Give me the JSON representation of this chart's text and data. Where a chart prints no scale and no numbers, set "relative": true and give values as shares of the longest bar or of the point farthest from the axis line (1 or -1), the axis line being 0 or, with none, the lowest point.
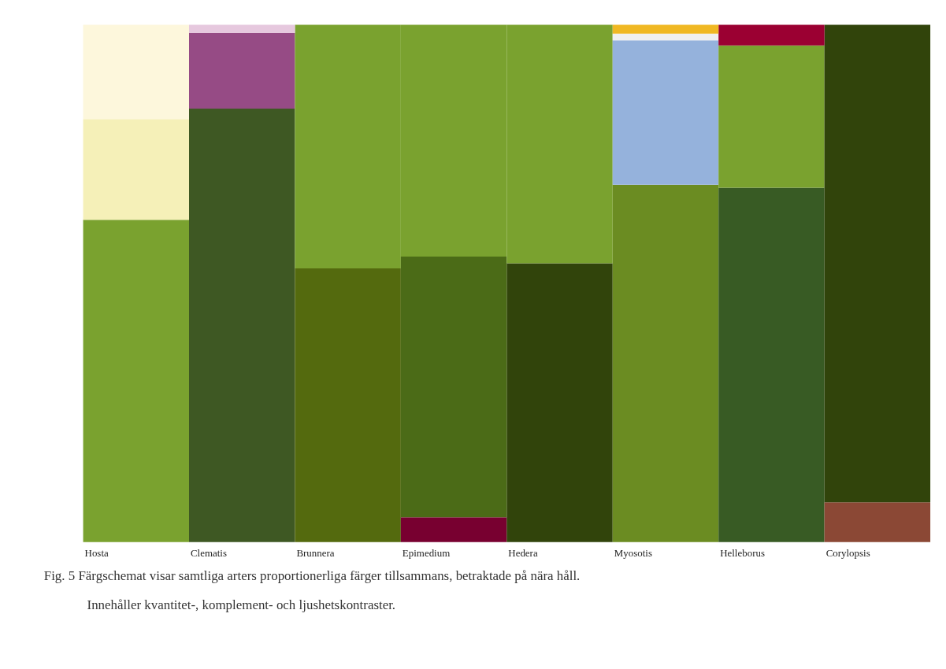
{
  "chart_data": {
    "type": "bar",
    "stacked": true,
    "relative": true,
    "grid": false,
    "categories": [
      "Hosta",
      "Clematis",
      "Brunnera",
      "Epimedium",
      "Hedera",
      "Myosotis",
      "Helleborus",
      "Corylopsis"
    ],
    "series": [
      {
        "colors": [
          "#7aa22f",
          "#3e5823",
          "#546a0e",
          "#780030",
          "#31440b",
          "#6b8c22",
          "#385b24",
          "#8b4835"
        ],
        "values": [
          0.623,
          0.838,
          0.529,
          0.048,
          0.539,
          0.691,
          0.685,
          0.077
        ]
      },
      {
        "colors": [
          "#f5f0b8",
          "#964b85",
          "#7aa22f",
          "#4b6b17",
          "#7aa22f",
          "#95b2dc",
          "#7aa22f",
          "#31440b"
        ],
        "values": [
          0.195,
          0.146,
          0.471,
          0.504,
          0.461,
          0.279,
          0.275,
          0.923
        ]
      },
      {
        "colors": [
          "#fdf7dc",
          "#e6c8de",
          null,
          "#7aa22f",
          null,
          "#f0f0f0",
          "#9b0032",
          null
        ],
        "values": [
          0.182,
          0.016,
          null,
          0.448,
          null,
          0.013,
          0.04,
          null
        ]
      },
      {
        "colors": [
          null,
          null,
          null,
          null,
          null,
          "#f0b823",
          null,
          null
        ],
        "values": [
          null,
          null,
          null,
          null,
          null,
          0.017,
          null,
          null
        ]
      }
    ],
    "annotations": [
      "Fig. 5 Färgschemat visar samtliga arters proportionerliga färger tillsammans, betraktade på nära håll.",
      "Innehåller kvantitet-, komplement- och ljushetskontraster."
    ]
  }
}
